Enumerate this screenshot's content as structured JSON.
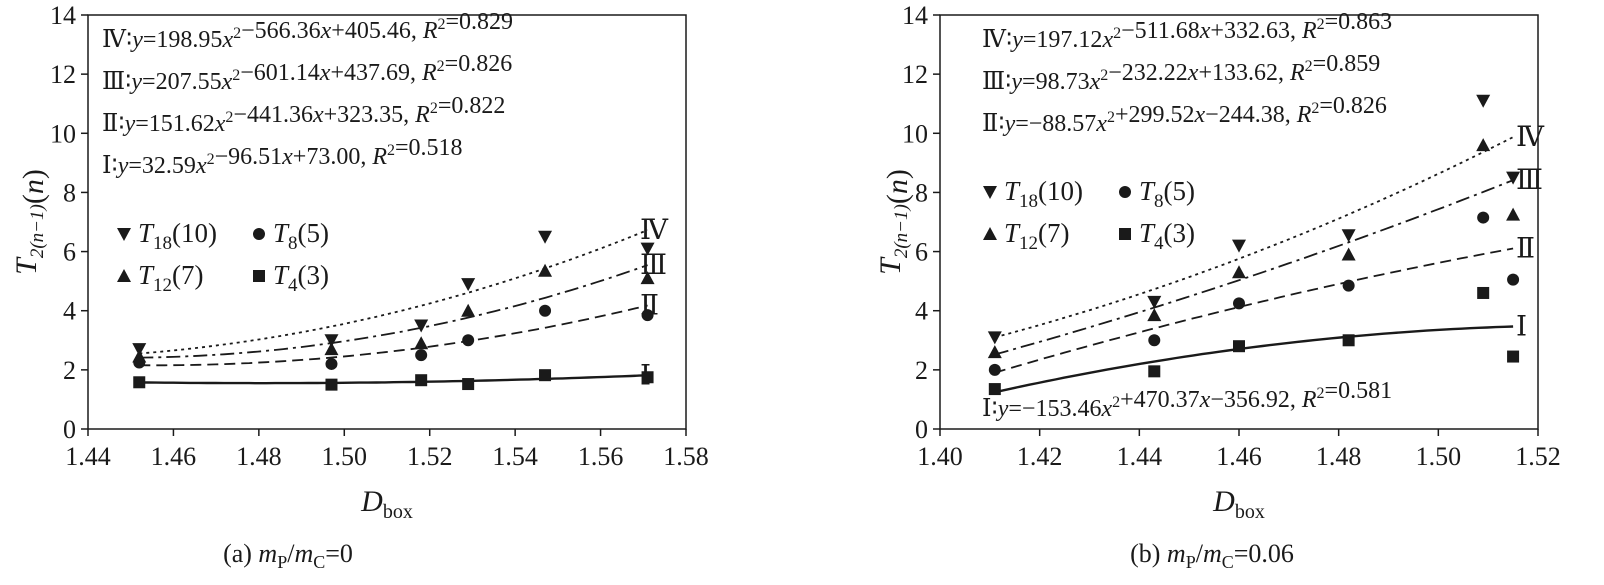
{
  "chart_data": [
    {
      "type": "scatter",
      "caption": "(a) mP/mC=0",
      "xlabel": "D",
      "xlabel_sub": "box",
      "ylabel": "T",
      "ylabel_sub": "2(n−1)",
      "ylabel_suffix": "(n)",
      "xlim": [
        1.44,
        1.58
      ],
      "ylim": [
        0,
        14
      ],
      "xticks": [
        1.44,
        1.46,
        1.48,
        1.5,
        1.52,
        1.54,
        1.56,
        1.58
      ],
      "xtick_labels": [
        "1.44",
        "1.46",
        "1.48",
        "1.50",
        "1.52",
        "1.54",
        "1.56",
        "1.58"
      ],
      "yticks": [
        0,
        2,
        4,
        6,
        8,
        10,
        12,
        14
      ],
      "ytick_labels": [
        "0",
        "2",
        "4",
        "6",
        "8",
        "10",
        "12",
        "14"
      ],
      "equations": [
        "Ⅳ∶y=198.95x²−566.36x+405.46, R²=0.829",
        "Ⅲ∶y=207.55x²−601.14x+437.69, R²=0.826",
        "Ⅱ∶y=151.62x²−441.36x+323.35, R²=0.822",
        "Ⅰ∶y=32.59x²−96.51x+73.00, R²=0.518"
      ],
      "series": [
        {
          "name": "T18(10)",
          "marker": "triangle-down",
          "x": [
            1.452,
            1.497,
            1.518,
            1.529,
            1.547,
            1.571
          ],
          "y": [
            2.7,
            3.0,
            3.5,
            4.9,
            6.5,
            6.1
          ]
        },
        {
          "name": "T8(5)",
          "marker": "circle",
          "x": [
            1.452,
            1.497,
            1.518,
            1.529,
            1.547,
            1.571
          ],
          "y": [
            2.25,
            2.2,
            2.5,
            3.0,
            4.0,
            3.85
          ]
        },
        {
          "name": "T12(7)",
          "marker": "triangle-up",
          "x": [
            1.452,
            1.497,
            1.518,
            1.529,
            1.547,
            1.571
          ],
          "y": [
            2.45,
            2.7,
            2.9,
            4.0,
            5.35,
            5.1
          ]
        },
        {
          "name": "T4(3)",
          "marker": "square",
          "x": [
            1.452,
            1.497,
            1.518,
            1.529,
            1.547,
            1.571
          ],
          "y": [
            1.58,
            1.5,
            1.65,
            1.52,
            1.82,
            1.75
          ]
        }
      ],
      "fits": [
        {
          "label": "Ⅳ",
          "dash": "dotted",
          "a": 198.95,
          "b": -566.36,
          "c": 405.46
        },
        {
          "label": "Ⅲ",
          "dash": "dashdot",
          "a": 207.55,
          "b": -601.14,
          "c": 437.69
        },
        {
          "label": "Ⅱ",
          "dash": "dashed",
          "a": 151.62,
          "b": -441.36,
          "c": 323.35
        },
        {
          "label": "Ⅰ",
          "dash": "solid",
          "a": 32.59,
          "b": -96.51,
          "c": 73.0
        }
      ]
    },
    {
      "type": "scatter",
      "caption": "(b) mP/mC=0.06",
      "xlabel": "D",
      "xlabel_sub": "box",
      "ylabel": "T",
      "ylabel_sub": "2(n−1)",
      "ylabel_suffix": "(n)",
      "xlim": [
        1.4,
        1.52
      ],
      "ylim": [
        0,
        14
      ],
      "xticks": [
        1.4,
        1.42,
        1.44,
        1.46,
        1.48,
        1.5,
        1.52
      ],
      "xtick_labels": [
        "1.40",
        "1.42",
        "1.44",
        "1.46",
        "1.48",
        "1.50",
        "1.52"
      ],
      "yticks": [
        0,
        2,
        4,
        6,
        8,
        10,
        12,
        14
      ],
      "ytick_labels": [
        "0",
        "2",
        "4",
        "6",
        "8",
        "10",
        "12",
        "14"
      ],
      "equations": [
        "Ⅳ∶y=197.12x²−511.68x+332.63, R²=0.863",
        "Ⅲ∶y=98.73x²−232.22x+133.62, R²=0.859",
        "Ⅱ∶y=−88.57x²+299.52x−244.38, R²=0.826"
      ],
      "equation_bottom": "Ⅰ∶y=−153.46x²+470.37x−356.92, R²=0.581",
      "series": [
        {
          "name": "T18(10)",
          "marker": "triangle-down",
          "x": [
            1.411,
            1.443,
            1.46,
            1.482,
            1.509,
            1.515
          ],
          "y": [
            3.1,
            4.3,
            6.2,
            6.55,
            11.1,
            8.5
          ]
        },
        {
          "name": "T8(5)",
          "marker": "circle",
          "x": [
            1.411,
            1.443,
            1.46,
            1.482,
            1.509,
            1.515
          ],
          "y": [
            2.0,
            3.0,
            4.25,
            4.85,
            7.15,
            5.05
          ]
        },
        {
          "name": "T12(7)",
          "marker": "triangle-up",
          "x": [
            1.411,
            1.443,
            1.46,
            1.482,
            1.509,
            1.515
          ],
          "y": [
            2.6,
            3.85,
            5.3,
            5.9,
            9.6,
            7.25
          ]
        },
        {
          "name": "T4(3)",
          "marker": "square",
          "x": [
            1.411,
            1.443,
            1.46,
            1.482,
            1.509,
            1.515
          ],
          "y": [
            1.35,
            1.95,
            2.8,
            3.0,
            4.6,
            2.45
          ]
        }
      ],
      "fits": [
        {
          "label": "Ⅳ",
          "dash": "dotted",
          "a": 197.12,
          "b": -511.68,
          "c": 332.63
        },
        {
          "label": "Ⅲ",
          "dash": "dashdot",
          "a": 98.73,
          "b": -232.22,
          "c": 133.62
        },
        {
          "label": "Ⅱ",
          "dash": "dashed",
          "a": -88.57,
          "b": 299.52,
          "c": -244.38
        },
        {
          "label": "Ⅰ",
          "dash": "solid",
          "a": -153.46,
          "b": 470.37,
          "c": -356.92
        }
      ]
    }
  ]
}
